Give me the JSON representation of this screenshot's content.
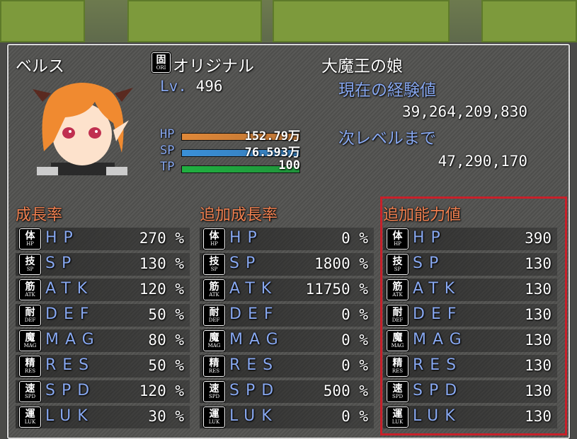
{
  "actor": {
    "name": "ベルス",
    "class_badge": {
      "kanji": "固",
      "sub": "ORI"
    },
    "class": "オリジナル",
    "nickname": "大魔王の娘",
    "level_label": "Lv.",
    "level": "496",
    "exp_label": "現在の経験値",
    "exp": "39,264,209,830",
    "next_label": "次レベルまで",
    "next": "47,290,170",
    "gauges": [
      {
        "label": "HP",
        "value": "152.79万",
        "fill": 1.0,
        "color": "#e08838"
      },
      {
        "label": "SP",
        "value": "76.593万",
        "fill": 1.0,
        "color": "#3a90d8"
      },
      {
        "label": "TP",
        "value": "100",
        "fill": 1.0,
        "color": "#20b040"
      }
    ]
  },
  "stats": [
    {
      "kanji": "体",
      "sub": "HP",
      "label": "HP"
    },
    {
      "kanji": "技",
      "sub": "SP",
      "label": "SP"
    },
    {
      "kanji": "筋",
      "sub": "ATK",
      "label": "ATK"
    },
    {
      "kanji": "耐",
      "sub": "DEF",
      "label": "DEF"
    },
    {
      "kanji": "魔",
      "sub": "MAG",
      "label": "MAG"
    },
    {
      "kanji": "精",
      "sub": "RES",
      "label": "RES"
    },
    {
      "kanji": "速",
      "sub": "SPD",
      "label": "SPD"
    },
    {
      "kanji": "運",
      "sub": "LUK",
      "label": "LUK"
    }
  ],
  "columns": [
    {
      "title": "成長率",
      "values": [
        "270 %",
        "130 %",
        "120 %",
        "50 %",
        "80 %",
        "50 %",
        "120 %",
        "30 %"
      ]
    },
    {
      "title": "追加成長率",
      "values": [
        "0 %",
        "1800 %",
        "11750 %",
        "0 %",
        "0 %",
        "0 %",
        "500 %",
        "0 %"
      ]
    },
    {
      "title": "追加能力値",
      "values": [
        "390",
        "130",
        "130",
        "130",
        "130",
        "130",
        "130",
        "130"
      ]
    }
  ],
  "highlight_color": "#c8202a"
}
